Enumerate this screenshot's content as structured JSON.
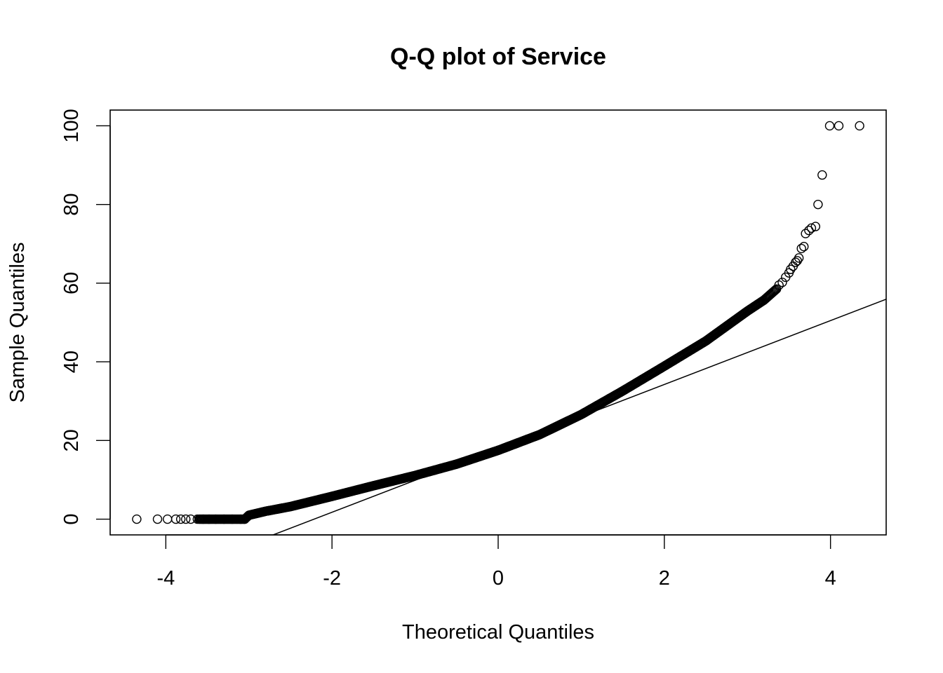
{
  "chart_data": {
    "type": "scatter",
    "title": "Q-Q plot of Service",
    "xlabel": "Theoretical Quantiles",
    "ylabel": "Sample Quantiles",
    "xlim": [
      -4.67,
      4.67
    ],
    "ylim": [
      -4,
      104
    ],
    "x_ticks": [
      -4,
      -2,
      0,
      2,
      4
    ],
    "x_tick_labels": [
      "-4",
      "-2",
      "0",
      "2",
      "4"
    ],
    "y_ticks": [
      0,
      20,
      40,
      60,
      80,
      100
    ],
    "y_tick_labels": [
      "0",
      "20",
      "40",
      "60",
      "80",
      "100"
    ],
    "grid": false,
    "legend": "none",
    "marker": "open-circle",
    "reference_line": {
      "slope": 8.12,
      "intercept": 18.0
    },
    "curve_points": [
      [
        -3.05,
        0
      ],
      [
        -3.0,
        1.0
      ],
      [
        -2.8,
        2.0
      ],
      [
        -2.5,
        3.2
      ],
      [
        -2.0,
        5.8
      ],
      [
        -1.5,
        8.5
      ],
      [
        -1.0,
        11.1
      ],
      [
        -0.5,
        14.0
      ],
      [
        0.0,
        17.5
      ],
      [
        0.5,
        21.5
      ],
      [
        1.0,
        26.6
      ],
      [
        1.5,
        32.6
      ],
      [
        2.0,
        38.9
      ],
      [
        2.5,
        45.3
      ],
      [
        3.0,
        52.9
      ],
      [
        3.2,
        55.7
      ],
      [
        3.35,
        58.5
      ]
    ],
    "zero_points": [
      [
        -4.35,
        0
      ],
      [
        -4.1,
        0
      ],
      [
        -3.98,
        0
      ],
      [
        -3.88,
        0
      ],
      [
        -3.82,
        0
      ],
      [
        -3.76,
        0
      ],
      [
        -3.7,
        0
      ],
      [
        -3.62,
        0
      ],
      [
        -3.55,
        0
      ],
      [
        -3.48,
        0
      ],
      [
        -3.4,
        0
      ],
      [
        -3.3,
        0
      ],
      [
        -3.2,
        0
      ],
      [
        -3.1,
        0
      ]
    ],
    "outlier_points": [
      [
        3.38,
        59.5
      ],
      [
        3.42,
        60.2
      ],
      [
        3.46,
        61.5
      ],
      [
        3.5,
        62.6
      ],
      [
        3.52,
        63.5
      ],
      [
        3.55,
        64.3
      ],
      [
        3.58,
        65.3
      ],
      [
        3.6,
        65.7
      ],
      [
        3.62,
        66.4
      ],
      [
        3.65,
        68.8
      ],
      [
        3.68,
        69.3
      ],
      [
        3.7,
        72.6
      ],
      [
        3.74,
        73.4
      ],
      [
        3.77,
        74.0
      ],
      [
        3.82,
        74.4
      ],
      [
        3.85,
        80.0
      ],
      [
        3.9,
        87.5
      ],
      [
        3.99,
        100.0
      ],
      [
        4.1,
        100.0
      ],
      [
        4.35,
        100.0
      ]
    ]
  }
}
